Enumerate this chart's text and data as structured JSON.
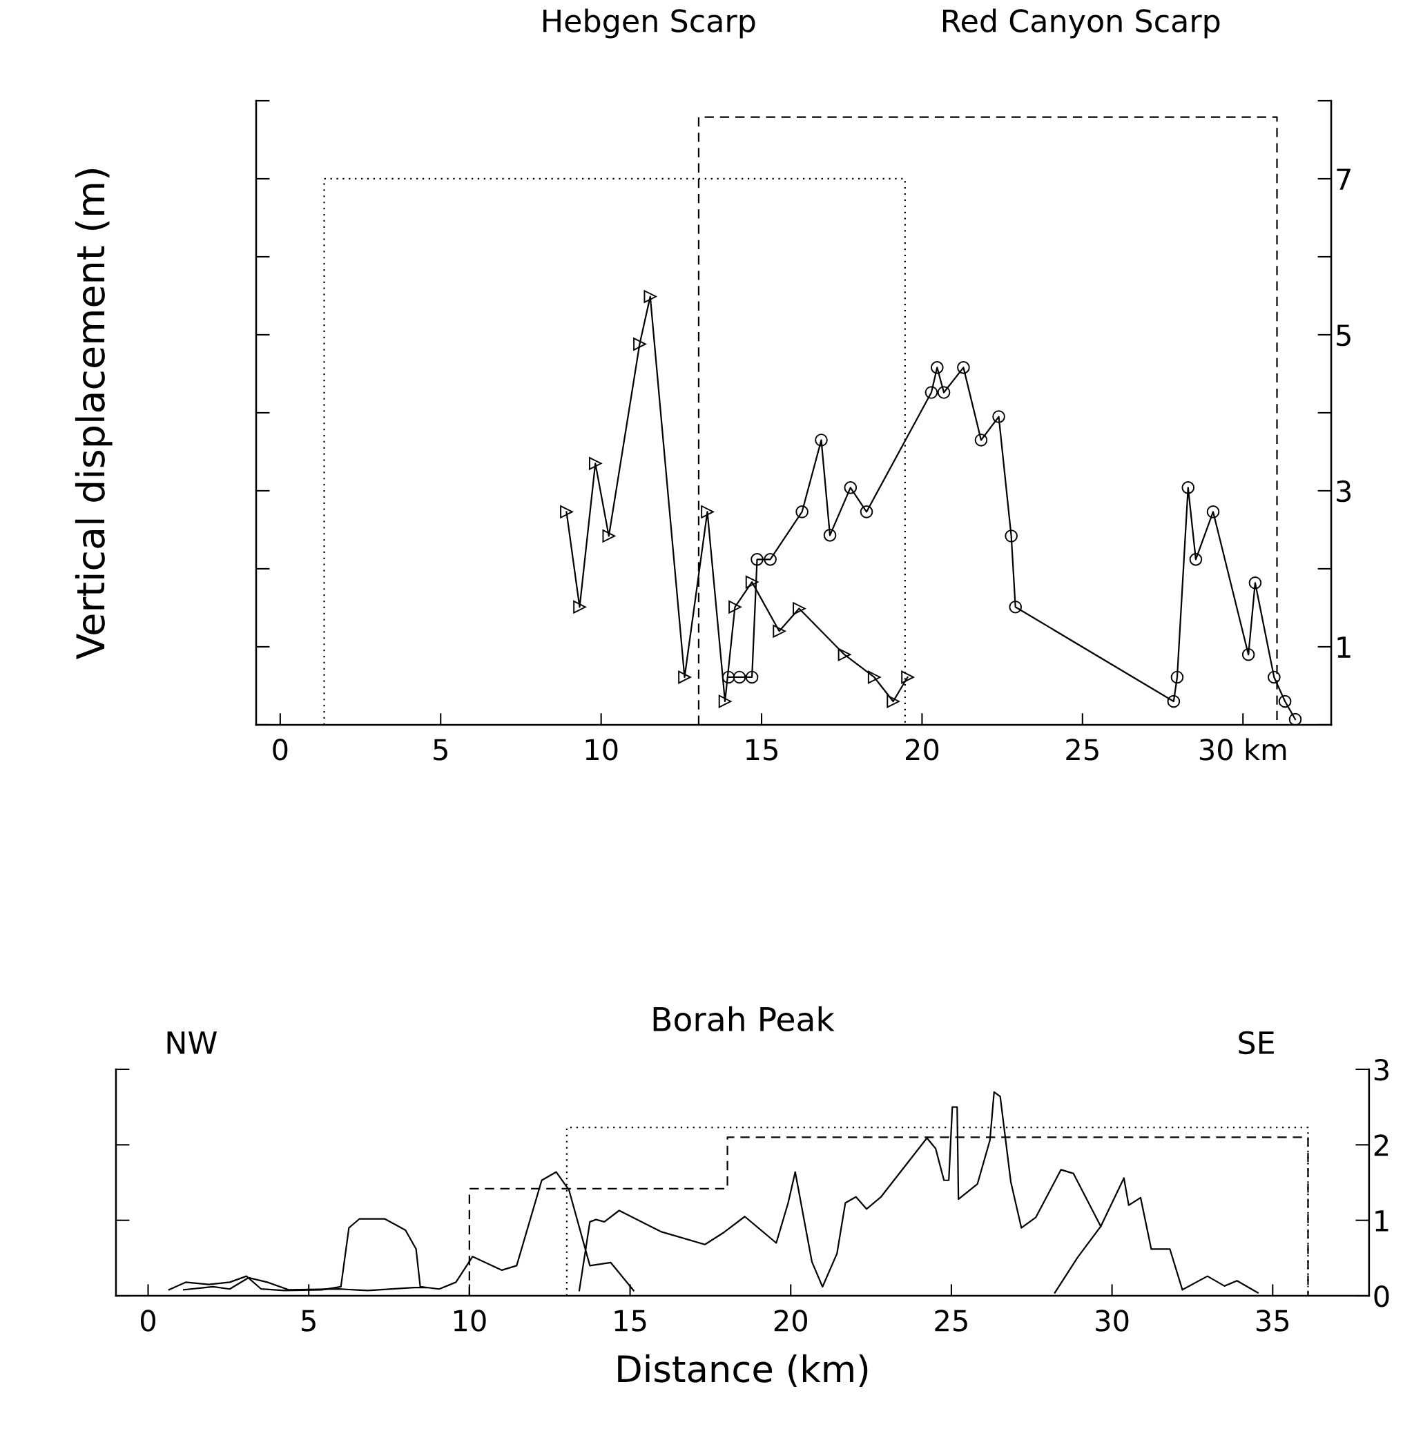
{
  "chart_data": [
    {
      "type": "line",
      "ylabel": "Vertical displacement (m)",
      "annotations": [
        "Hebgen Scarp",
        "Red Canyon Scarp"
      ],
      "xlim": [
        -0.75,
        32.75
      ],
      "ylim": [
        0,
        8
      ],
      "xticks": [
        0,
        5,
        10,
        15,
        20,
        25,
        {
          "value": 30,
          "label": "30 km"
        }
      ],
      "yticks": [
        1,
        3,
        5,
        7
      ],
      "grid": false,
      "legend": false,
      "series": [
        {
          "color": "#000000",
          "marker": "triangle",
          "line_style": "solid",
          "x": [
            8.92,
            9.33,
            9.82,
            10.24,
            11.2,
            11.53,
            12.6,
            13.31,
            13.86,
            14.17,
            14.7,
            15.55,
            16.17,
            17.58,
            18.51,
            19.1,
            19.55
          ],
          "values": [
            2.73,
            1.51,
            3.35,
            2.42,
            4.88,
            5.49,
            0.61,
            2.73,
            0.3,
            1.51,
            1.83,
            1.2,
            1.49,
            0.9,
            0.61,
            0.3,
            0.61
          ]
        },
        {
          "color": "#000000",
          "marker": "circle",
          "line_style": "solid",
          "x": [
            13.97,
            14.31,
            14.7,
            14.86,
            15.27,
            16.26,
            16.86,
            17.13,
            17.77,
            18.27,
            20.29,
            20.47,
            20.68,
            21.29,
            21.84,
            22.39,
            22.78,
            22.91,
            27.84,
            27.95,
            28.29,
            28.53,
            29.07,
            30.17,
            30.38,
            30.97,
            31.31,
            31.63
          ],
          "values": [
            0.61,
            0.61,
            0.61,
            2.12,
            2.12,
            2.73,
            3.65,
            2.43,
            3.04,
            2.73,
            4.26,
            4.58,
            4.26,
            4.58,
            3.65,
            3.95,
            2.42,
            1.51,
            0.3,
            0.61,
            3.04,
            2.12,
            2.73,
            0.9,
            1.82,
            0.61,
            0.3,
            0.07
          ]
        },
        {
          "color": "#000000",
          "marker": "none",
          "line_style": "dotted",
          "x": [
            1.37,
            1.37,
            19.47,
            19.47
          ],
          "values": [
            0,
            7,
            7,
            0
          ]
        },
        {
          "color": "#000000",
          "marker": "none",
          "line_style": "dashed",
          "x": [
            13.04,
            13.04,
            31.06,
            31.06
          ],
          "values": [
            0,
            7.79,
            7.79,
            0
          ]
        }
      ]
    },
    {
      "type": "line",
      "title": "Borah Peak",
      "xlabel": "Distance (km)",
      "annotations": [
        "NW",
        "SE"
      ],
      "xlim": [
        -1,
        38
      ],
      "ylim": [
        0,
        3
      ],
      "xticks": [
        0,
        5,
        10,
        15,
        20,
        25,
        30,
        35
      ],
      "yticks": [
        0,
        1,
        2,
        3
      ],
      "grid": false,
      "legend": false,
      "series": [
        {
          "color": "#000000",
          "marker": "none",
          "line_style": "solid",
          "x": [
            0.65,
            1.17,
            1.89,
            2.54,
            3.06,
            3.52,
            4.24,
            5.41,
            6.0,
            6.25,
            6.58,
            7.36,
            8.01,
            8.34,
            8.47,
            9.06,
            9.58,
            10.1,
            11.01,
            11.47,
            12.25,
            12.7,
            13.1,
            13.75,
            14.4,
            15.11
          ],
          "values": [
            0.08,
            0.18,
            0.15,
            0.18,
            0.26,
            0.09,
            0.07,
            0.08,
            0.12,
            0.9,
            1.02,
            1.02,
            0.87,
            0.62,
            0.12,
            0.09,
            0.18,
            0.52,
            0.34,
            0.4,
            1.53,
            1.64,
            1.4,
            0.4,
            0.44,
            0.07
          ]
        },
        {
          "color": "#000000",
          "marker": "none",
          "line_style": "solid",
          "x": [
            1.11,
            2.02,
            2.54,
            3.13,
            3.71,
            4.37,
            5.93,
            6.84,
            8.27,
            8.66
          ],
          "values": [
            0.08,
            0.12,
            0.09,
            0.24,
            0.18,
            0.08,
            0.09,
            0.07,
            0.11,
            0.11
          ]
        },
        {
          "color": "#000000",
          "marker": "none",
          "line_style": "solid",
          "x": [
            13.42,
            13.75,
            13.94,
            14.2,
            14.66,
            15.96,
            17.33,
            17.92,
            18.57,
            19.55,
            19.92,
            20.14,
            20.66,
            20.99,
            21.44,
            21.7,
            22.03,
            22.36,
            22.81,
            24.24,
            24.51,
            24.77,
            24.92,
            25.03,
            25.18,
            25.22,
            25.81,
            26.2,
            26.33,
            26.52,
            26.85,
            27.18,
            27.63,
            28.41,
            28.8,
            29.65
          ],
          "values": [
            0.07,
            0.98,
            1.01,
            0.98,
            1.13,
            0.85,
            0.68,
            0.84,
            1.05,
            0.7,
            1.23,
            1.64,
            0.45,
            0.12,
            0.56,
            1.23,
            1.31,
            1.15,
            1.31,
            2.09,
            1.95,
            1.53,
            1.53,
            2.5,
            2.5,
            1.28,
            1.48,
            2.06,
            2.7,
            2.64,
            1.51,
            0.9,
            1.04,
            1.67,
            1.62,
            0.92
          ]
        },
        {
          "color": "#000000",
          "marker": "none",
          "line_style": "solid",
          "x": [
            28.22,
            28.93,
            29.65,
            30.37,
            30.52,
            30.89,
            31.22,
            31.8,
            32.19,
            32.97,
            33.5,
            33.89,
            34.54
          ],
          "values": [
            0.04,
            0.51,
            0.92,
            1.56,
            1.2,
            1.3,
            0.62,
            0.62,
            0.08,
            0.26,
            0.13,
            0.2,
            0.04
          ]
        },
        {
          "color": "#000000",
          "marker": "none",
          "line_style": "dotted",
          "x": [
            13.03,
            13.03,
            36.1,
            36.1
          ],
          "values": [
            0,
            2.23,
            2.23,
            0
          ]
        },
        {
          "color": "#000000",
          "marker": "none",
          "line_style": "dashed",
          "x": [
            10,
            10,
            18.03,
            18.03,
            36.1,
            36.1
          ],
          "values": [
            0,
            1.42,
            1.42,
            2.1,
            2.1,
            0
          ]
        }
      ]
    }
  ]
}
